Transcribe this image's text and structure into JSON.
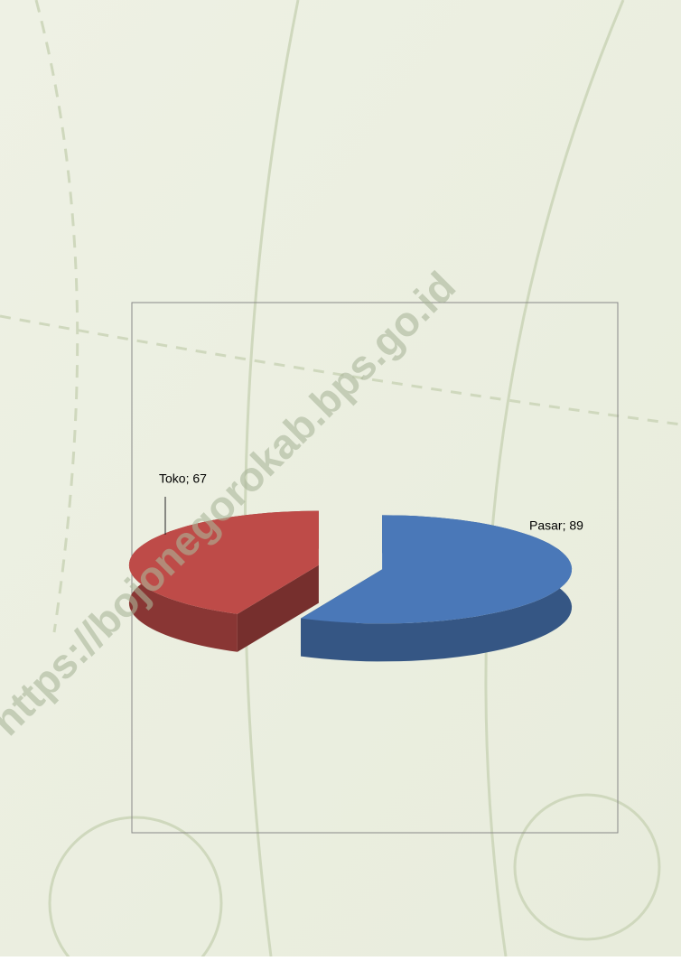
{
  "watermark": "https://bojonegorokab.bps.go.id",
  "chart_data": {
    "type": "pie3d",
    "categories": [
      "Pasar",
      "Toko"
    ],
    "values": [
      89,
      67
    ],
    "value_labels": [
      "Pasar; 89",
      "Toko; 67"
    ],
    "colors": [
      "#4a78b8",
      "#be4b48"
    ]
  }
}
